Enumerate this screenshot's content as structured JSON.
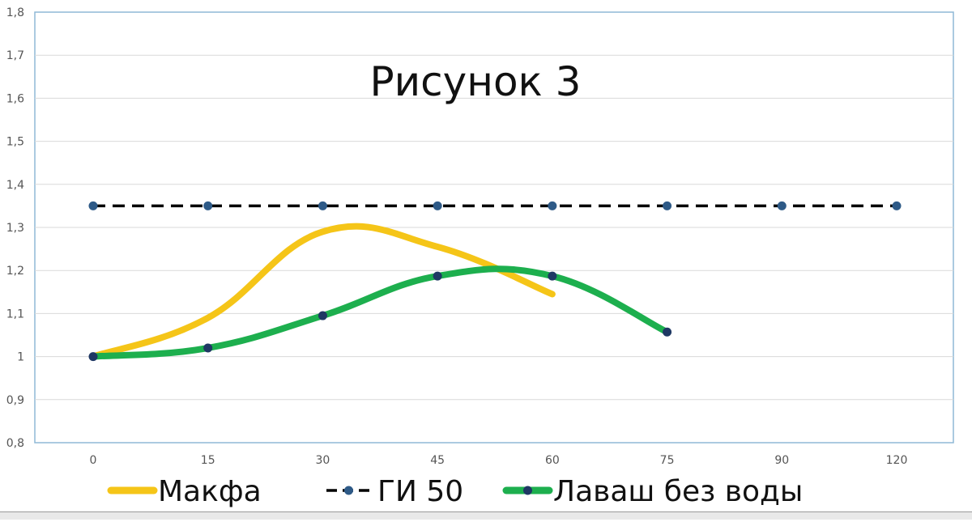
{
  "chart_data": {
    "type": "line",
    "title": "Рисунок 3",
    "categories": [
      "0",
      "15",
      "30",
      "45",
      "60",
      "75",
      "90",
      "120"
    ],
    "ylim": [
      0.8,
      1.8
    ],
    "yticks": [
      "0,8",
      "0,9",
      "1",
      "1,1",
      "1,2",
      "1,3",
      "1,4",
      "1,5",
      "1,6",
      "1,7",
      "1,8"
    ],
    "ytick_values": [
      0.8,
      0.9,
      1.0,
      1.1,
      1.2,
      1.3,
      1.4,
      1.5,
      1.6,
      1.7,
      1.8
    ],
    "grid": true,
    "legend_position": "bottom",
    "series": [
      {
        "name": "Макфа",
        "values": [
          1.0,
          1.09,
          1.29,
          1.255,
          1.145,
          null,
          null,
          null
        ],
        "color": "#F5C518",
        "style": "smooth-solid",
        "markers": false
      },
      {
        "name": "ГИ 50",
        "values": [
          1.35,
          1.35,
          1.35,
          1.35,
          1.35,
          1.35,
          1.35,
          1.35
        ],
        "color": "#000000",
        "marker_color": "#2E5A87",
        "style": "dashed",
        "markers": true
      },
      {
        "name": "Лаваш без воды",
        "values": [
          1.0,
          1.02,
          1.095,
          1.187,
          1.187,
          1.057,
          null,
          null
        ],
        "color": "#1DAF4E",
        "marker_color": "#1F3864",
        "style": "smooth-solid",
        "markers": true
      }
    ]
  }
}
